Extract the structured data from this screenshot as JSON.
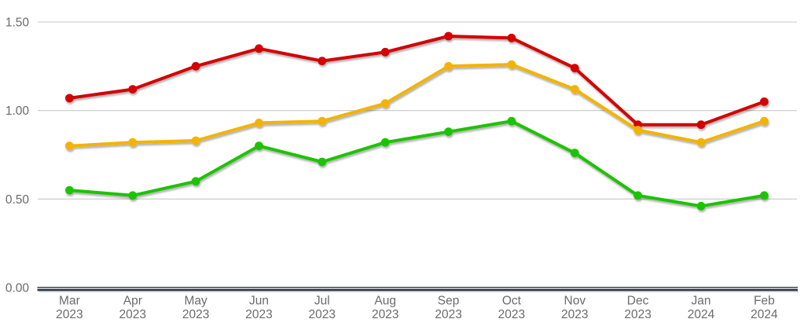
{
  "chart_data": {
    "type": "line",
    "title": "",
    "xlabel": "",
    "ylabel": "",
    "categories": [
      "Mar 2023",
      "Apr 2023",
      "May 2023",
      "Jun 2023",
      "Jul 2023",
      "Aug 2023",
      "Sep 2023",
      "Oct 2023",
      "Nov 2023",
      "Dec 2023",
      "Jan 2024",
      "Feb 2024"
    ],
    "series": [
      {
        "name": "red-series",
        "color": "#d40000",
        "values": [
          1.07,
          1.12,
          1.25,
          1.35,
          1.28,
          1.33,
          1.42,
          1.41,
          1.24,
          0.92,
          0.92,
          1.05
        ]
      },
      {
        "name": "amber-series",
        "color": "#f3b300",
        "values": [
          0.8,
          0.82,
          0.83,
          0.93,
          0.94,
          1.04,
          1.25,
          1.26,
          1.12,
          0.89,
          0.82,
          0.94
        ]
      },
      {
        "name": "green-series",
        "color": "#1ec300",
        "values": [
          0.55,
          0.52,
          0.6,
          0.8,
          0.71,
          0.82,
          0.88,
          0.94,
          0.76,
          0.52,
          0.46,
          0.52
        ]
      }
    ],
    "ylim": [
      0,
      1.5
    ],
    "yticks": [
      0.0,
      0.5,
      1.0,
      1.5
    ],
    "ytick_labels": [
      "0.00",
      "0.50",
      "1.00",
      "1.50"
    ],
    "grid": true,
    "legend": "none",
    "marker": "circle"
  },
  "style": {
    "grid_color": "#c8c8c8",
    "axis_color": "#2a2f38",
    "axis_shadow_color": "#c2c5ca",
    "label_color": "#6b6b6b",
    "background": "#ffffff"
  }
}
